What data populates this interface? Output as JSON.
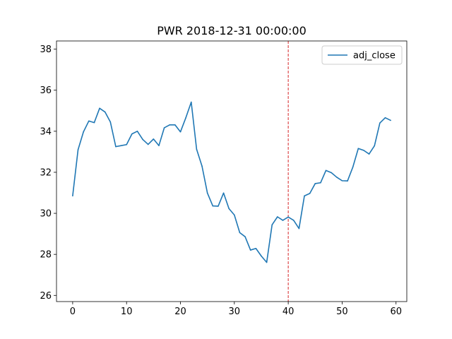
{
  "chart_data": {
    "type": "line",
    "title": "PWR 2018-12-31 00:00:00",
    "xlabel": "",
    "ylabel": "",
    "xlim": [
      -3,
      62
    ],
    "ylim": [
      25.7,
      38.4
    ],
    "xticks": [
      0,
      10,
      20,
      30,
      40,
      50,
      60
    ],
    "yticks": [
      26,
      28,
      30,
      32,
      34,
      36,
      38
    ],
    "grid": false,
    "legend_position": "top-right",
    "series": [
      {
        "name": "adj_close",
        "color": "#1f77b4",
        "x": [
          0,
          1,
          2,
          3,
          4,
          5,
          6,
          7,
          8,
          9,
          10,
          11,
          12,
          13,
          14,
          15,
          16,
          17,
          18,
          19,
          20,
          21,
          22,
          23,
          24,
          25,
          26,
          27,
          28,
          29,
          30,
          31,
          32,
          33,
          34,
          35,
          36,
          37,
          38,
          39,
          40,
          41,
          42,
          43,
          44,
          45,
          46,
          47,
          48,
          49,
          50,
          51,
          52,
          53,
          54,
          55,
          56,
          57,
          58,
          59
        ],
        "values": [
          30.85,
          33.1,
          33.97,
          34.5,
          34.42,
          35.12,
          34.94,
          34.45,
          33.25,
          33.3,
          33.35,
          33.87,
          34.0,
          33.6,
          33.36,
          33.62,
          33.3,
          34.17,
          34.31,
          34.31,
          33.97,
          34.66,
          35.42,
          33.12,
          32.3,
          30.99,
          30.36,
          30.35,
          30.99,
          30.23,
          29.92,
          29.06,
          28.86,
          28.21,
          28.29,
          27.92,
          27.61,
          29.44,
          29.83,
          29.66,
          29.82,
          29.66,
          29.26,
          30.85,
          30.97,
          31.45,
          31.49,
          32.09,
          31.98,
          31.76,
          31.59,
          31.58,
          32.26,
          33.16,
          33.07,
          32.89,
          33.29,
          34.4,
          34.66,
          34.53
        ]
      }
    ],
    "annotations": [
      {
        "type": "vline",
        "x": 40,
        "color": "#d62728",
        "style": "dashed"
      }
    ]
  }
}
